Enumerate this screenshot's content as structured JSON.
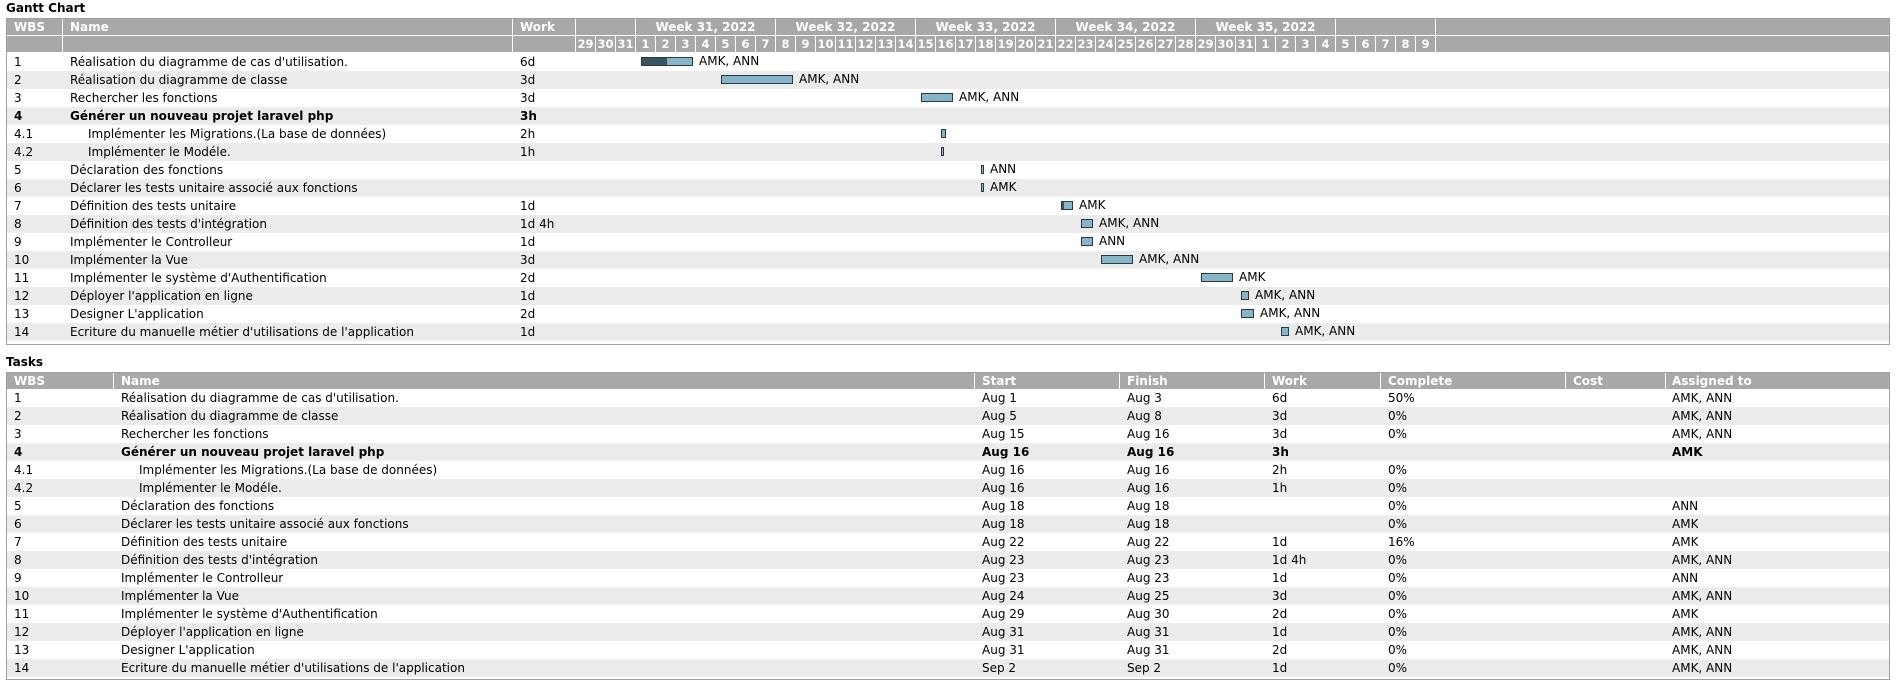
{
  "gantt": {
    "title": "Gantt Chart",
    "columns": {
      "wbs": "WBS",
      "name": "Name",
      "work": "Work"
    },
    "weeks": [
      "Week  31, 2022",
      "Week  32, 2022",
      "Week  33, 2022",
      "Week  34, 2022",
      "Week  35, 2022"
    ],
    "days": [
      "29",
      "30",
      "31",
      "1",
      "2",
      "3",
      "4",
      "5",
      "6",
      "7",
      "8",
      "9",
      "10",
      "11",
      "12",
      "13",
      "14",
      "15",
      "16",
      "17",
      "18",
      "19",
      "20",
      "21",
      "22",
      "23",
      "24",
      "25",
      "26",
      "27",
      "28",
      "29",
      "30",
      "31",
      "1",
      "2",
      "3",
      "4",
      "5",
      "6",
      "7",
      "8",
      "9"
    ]
  },
  "tasks_table": {
    "title": "Tasks",
    "columns": {
      "wbs": "WBS",
      "name": "Name",
      "start": "Start",
      "finish": "Finish",
      "work": "Work",
      "complete": "Complete",
      "cost": "Cost",
      "assigned": "Assigned to"
    }
  },
  "tasks": [
    {
      "wbs": "1",
      "name": "Réalisation du diagramme de cas d'utilisation.",
      "work": "6d",
      "start": "Aug 1",
      "finish": "Aug 3",
      "complete": "50%",
      "cost": "",
      "assigned": "AMK, ANN",
      "label": "AMK, ANN",
      "bar_start": "2022-08-01",
      "bar_end": "2022-08-03",
      "pct": 50,
      "bold": false,
      "indent": 0
    },
    {
      "wbs": "2",
      "name": "Réalisation du diagramme de classe",
      "work": "3d",
      "start": "Aug 5",
      "finish": "Aug 8",
      "complete": "0%",
      "cost": "",
      "assigned": "AMK, ANN",
      "label": "AMK, ANN",
      "bar_start": "2022-08-05",
      "bar_end": "2022-08-08",
      "pct": 0,
      "bold": false,
      "indent": 0
    },
    {
      "wbs": "3",
      "name": "Rechercher les fonctions",
      "work": "3d",
      "start": "Aug 15",
      "finish": "Aug 16",
      "complete": "0%",
      "cost": "",
      "assigned": "AMK, ANN",
      "label": "AMK, ANN",
      "bar_start": "2022-08-15",
      "bar_end": "2022-08-16",
      "pct": 0,
      "bold": false,
      "indent": 0
    },
    {
      "wbs": "4",
      "name": "Générer un nouveau projet laravel php",
      "work": "3h",
      "start": "Aug 16",
      "finish": "Aug 16",
      "complete": "",
      "cost": "",
      "assigned": "AMK",
      "label": "",
      "bar_start": null,
      "bar_end": null,
      "pct": 0,
      "bold": true,
      "indent": 0
    },
    {
      "wbs": "4.1",
      "name": "Implémenter les Migrations.(La base de données)",
      "work": "2h",
      "start": "Aug 16",
      "finish": "Aug 16",
      "complete": "0%",
      "cost": "",
      "assigned": "",
      "label": "",
      "bar_start": "2022-08-16",
      "bar_end": "2022-08-16",
      "pct": 0,
      "bold": false,
      "indent": 1,
      "hours": 2
    },
    {
      "wbs": "4.2",
      "name": "Implémenter le Modéle.",
      "work": "1h",
      "start": "Aug 16",
      "finish": "Aug 16",
      "complete": "0%",
      "cost": "",
      "assigned": "",
      "label": "",
      "bar_start": "2022-08-16",
      "bar_end": "2022-08-16",
      "pct": 0,
      "bold": false,
      "indent": 1,
      "hours": 1
    },
    {
      "wbs": "5",
      "name": "Déclaration des fonctions",
      "work": "",
      "start": "Aug 18",
      "finish": "Aug 18",
      "complete": "0%",
      "cost": "",
      "assigned": "ANN",
      "label": "ANN",
      "bar_start": "2022-08-18",
      "bar_end": "2022-08-18",
      "pct": 0,
      "bold": false,
      "indent": 0,
      "hours": 1
    },
    {
      "wbs": "6",
      "name": "Déclarer les tests unitaire associé aux fonctions",
      "work": "",
      "start": "Aug 18",
      "finish": "Aug 18",
      "complete": "0%",
      "cost": "",
      "assigned": "AMK",
      "label": "AMK",
      "bar_start": "2022-08-18",
      "bar_end": "2022-08-18",
      "pct": 0,
      "bold": false,
      "indent": 0,
      "hours": 1
    },
    {
      "wbs": "7",
      "name": "Définition des tests unitaire",
      "work": "1d",
      "start": "Aug 22",
      "finish": "Aug 22",
      "complete": "16%",
      "cost": "",
      "assigned": "AMK",
      "label": "AMK",
      "bar_start": "2022-08-22",
      "bar_end": "2022-08-22",
      "pct": 16,
      "bold": false,
      "indent": 0
    },
    {
      "wbs": "8",
      "name": "Définition des tests d'intégration",
      "work": "1d 4h",
      "start": "Aug 23",
      "finish": "Aug 23",
      "complete": "0%",
      "cost": "",
      "assigned": "AMK, ANN",
      "label": "AMK, ANN",
      "bar_start": "2022-08-23",
      "bar_end": "2022-08-23",
      "pct": 0,
      "bold": false,
      "indent": 0
    },
    {
      "wbs": "9",
      "name": "Implémenter le Controlleur",
      "work": "1d",
      "start": "Aug 23",
      "finish": "Aug 23",
      "complete": "0%",
      "cost": "",
      "assigned": "ANN",
      "label": "ANN",
      "bar_start": "2022-08-23",
      "bar_end": "2022-08-23",
      "pct": 0,
      "bold": false,
      "indent": 0
    },
    {
      "wbs": "10",
      "name": "Implémenter la Vue",
      "work": "3d",
      "start": "Aug 24",
      "finish": "Aug 25",
      "complete": "0%",
      "cost": "",
      "assigned": "AMK, ANN",
      "label": "AMK, ANN",
      "bar_start": "2022-08-24",
      "bar_end": "2022-08-25",
      "pct": 0,
      "bold": false,
      "indent": 0
    },
    {
      "wbs": "11",
      "name": "Implémenter le système d'Authentification",
      "work": "2d",
      "start": "Aug 29",
      "finish": "Aug 30",
      "complete": "0%",
      "cost": "",
      "assigned": "AMK",
      "label": "AMK",
      "bar_start": "2022-08-29",
      "bar_end": "2022-08-30",
      "pct": 0,
      "bold": false,
      "indent": 0
    },
    {
      "wbs": "12",
      "name": "Déployer l'application en ligne",
      "work": "1d",
      "start": "Aug 31",
      "finish": "Aug 31",
      "complete": "0%",
      "cost": "",
      "assigned": "AMK, ANN",
      "label": "AMK, ANN",
      "bar_start": "2022-08-31",
      "bar_end": "2022-08-31",
      "pct": 0,
      "bold": false,
      "indent": 0,
      "hours": 3
    },
    {
      "wbs": "13",
      "name": "Designer L'application",
      "work": "2d",
      "start": "Aug 31",
      "finish": "Aug 31",
      "complete": "0%",
      "cost": "",
      "assigned": "AMK, ANN",
      "label": "AMK, ANN",
      "bar_start": "2022-08-31",
      "bar_end": "2022-08-31",
      "pct": 0,
      "bold": false,
      "indent": 0,
      "hours": 5
    },
    {
      "wbs": "14",
      "name": "Ecriture du manuelle métier d'utilisations de l'application",
      "work": "1d",
      "start": "Sep 2",
      "finish": "Sep 2",
      "complete": "0%",
      "cost": "",
      "assigned": "AMK, ANN",
      "label": "AMK, ANN",
      "bar_start": "2022-09-02",
      "bar_end": "2022-09-02",
      "pct": 0,
      "bold": false,
      "indent": 0,
      "hours": 3
    }
  ],
  "colors": {
    "bar": "#88b4c8",
    "done": "#3b5260",
    "header": "#a8a8a8",
    "row_alt": "#ececec"
  }
}
